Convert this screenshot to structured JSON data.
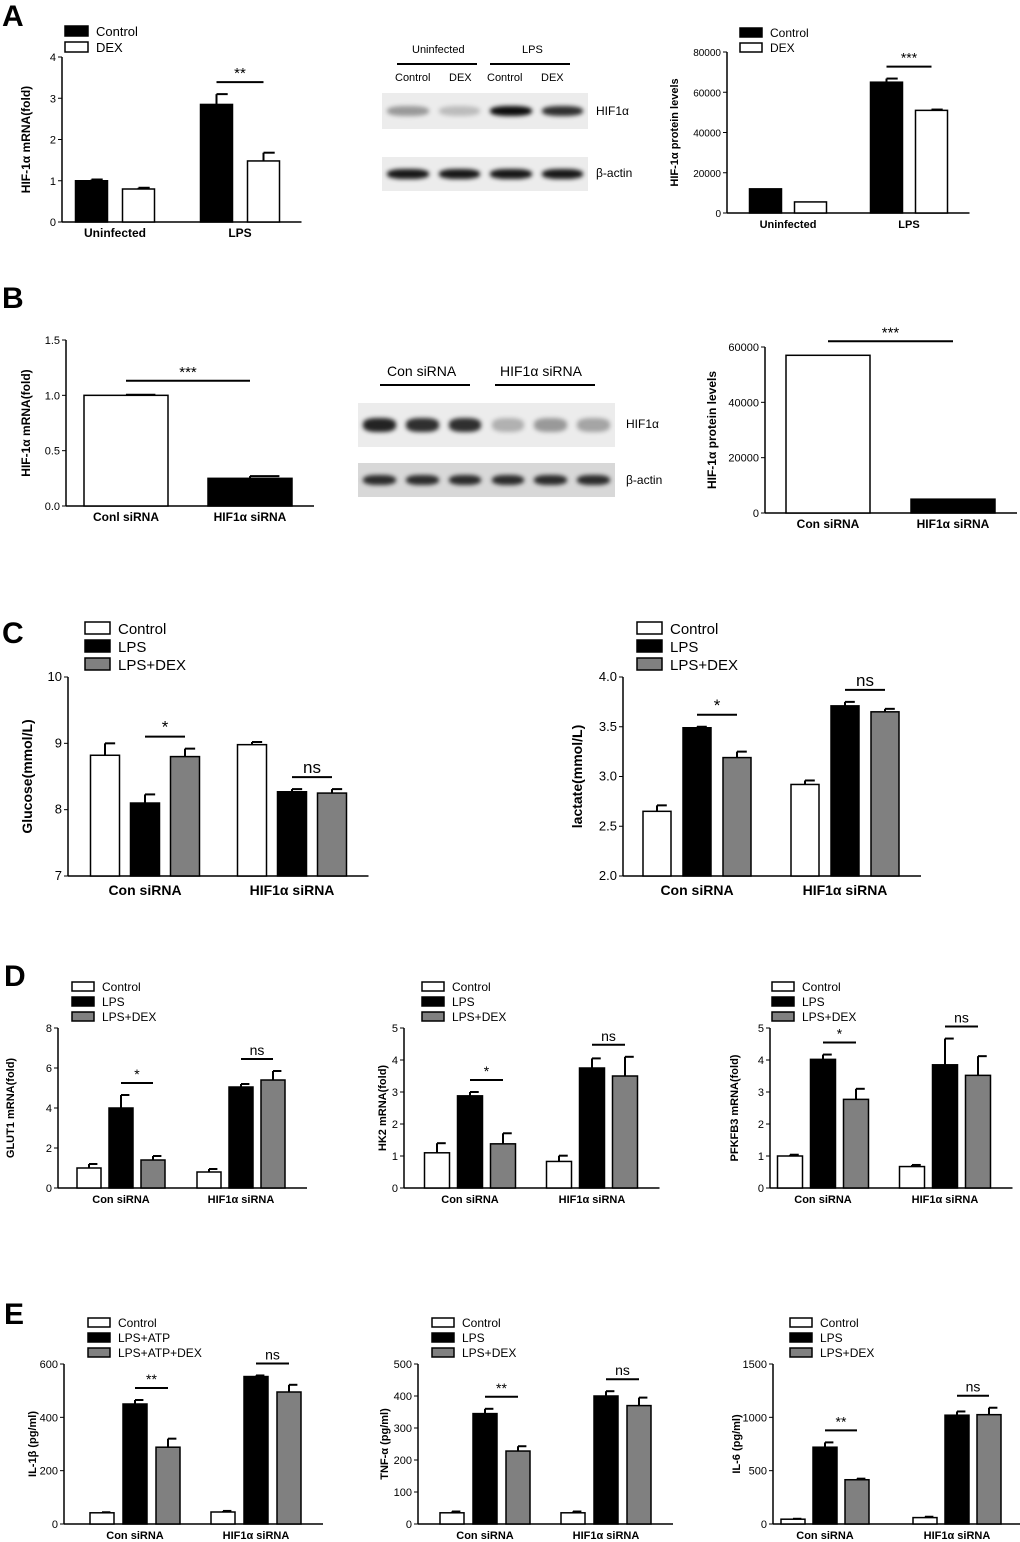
{
  "panels": [
    "A",
    "B",
    "C",
    "D",
    "E"
  ],
  "blots": [
    {
      "id": "A-blot",
      "groups": [
        "Uninfected",
        "LPS"
      ],
      "lanes": [
        "Control",
        "DEX",
        "Control",
        "DEX"
      ],
      "bands": [
        "HIF1α",
        "β-actin"
      ],
      "hif_band_intensity": [
        0.35,
        0.2,
        0.95,
        0.8
      ],
      "actin_band_intensity": [
        0.9,
        0.9,
        0.9,
        0.9
      ]
    },
    {
      "id": "B-blot",
      "groups": [
        "Con siRNA",
        "HIF1α siRNA"
      ],
      "lanes": [],
      "bands": [
        "HIF1α",
        "β-actin"
      ],
      "hif_band_intensity": [
        0.85,
        0.8,
        0.8,
        0.25,
        0.35,
        0.3
      ],
      "actin_band_intensity": [
        0.8,
        0.8,
        0.8,
        0.8,
        0.8,
        0.8
      ]
    }
  ],
  "chart_data": [
    {
      "id": "A-mrna",
      "type": "bar",
      "ylabel": "HIF-1α mRNA(fold)",
      "ylim": [
        0,
        4
      ],
      "yticks": [
        "0",
        "1",
        "2",
        "3",
        "4"
      ],
      "categories": [
        "Uninfected",
        "LPS"
      ],
      "series": [
        {
          "name": "Control",
          "fill": "#000000",
          "values": [
            1.0,
            2.85
          ],
          "errors": [
            0.03,
            0.25
          ]
        },
        {
          "name": "DEX",
          "fill": "#ffffff",
          "values": [
            0.8,
            1.48
          ],
          "errors": [
            0.03,
            0.2
          ]
        }
      ],
      "significance": [
        {
          "category": 1,
          "series": [
            0,
            1
          ],
          "label": "**"
        }
      ]
    },
    {
      "id": "A-protein",
      "type": "bar",
      "ylabel": "HIF-1α protein levels",
      "ylim": [
        0,
        80000
      ],
      "yticks": [
        "0",
        "20000",
        "40000",
        "60000",
        "80000"
      ],
      "categories": [
        "Uninfected",
        "LPS"
      ],
      "series": [
        {
          "name": "Control",
          "fill": "#000000",
          "values": [
            12000,
            65000
          ],
          "errors": [
            0,
            1800
          ]
        },
        {
          "name": "DEX",
          "fill": "#ffffff",
          "values": [
            5500,
            51000
          ],
          "errors": [
            0,
            400
          ]
        }
      ],
      "significance": [
        {
          "category": 1,
          "series": [
            0,
            1
          ],
          "label": "***"
        }
      ]
    },
    {
      "id": "B-mrna",
      "type": "bar",
      "ylabel": "HIF-1α mRNA(fold)",
      "ylim": [
        0,
        1.5
      ],
      "yticks": [
        "0.0",
        "0.5",
        "1.0",
        "1.5"
      ],
      "categories": [
        "Conl siRNA",
        "HIF1α siRNA"
      ],
      "series": [
        {
          "name": "",
          "fills": [
            "#ffffff",
            "#000000"
          ],
          "values": [
            1.0,
            0.25
          ],
          "errors": [
            0.005,
            0.02
          ]
        }
      ],
      "significance": [
        {
          "across_categories": true,
          "label": "***"
        }
      ]
    },
    {
      "id": "B-protein",
      "type": "bar",
      "ylabel": "HIF-1α protein levels",
      "ylim": [
        0,
        60000
      ],
      "yticks": [
        "0",
        "20000",
        "40000",
        "60000"
      ],
      "categories": [
        "Con siRNA",
        "HIF1α siRNA"
      ],
      "series": [
        {
          "name": "",
          "fills": [
            "#ffffff",
            "#000000"
          ],
          "values": [
            57000,
            5000
          ],
          "errors": [
            0,
            0
          ]
        }
      ],
      "significance": [
        {
          "across_categories": true,
          "label": "***"
        }
      ]
    },
    {
      "id": "C-glucose",
      "type": "bar",
      "ylabel": "Glucose(mmol/L)",
      "ylim": [
        7,
        10
      ],
      "yticks": [
        "7",
        "8",
        "9",
        "10"
      ],
      "categories": [
        "Con siRNA",
        "HIF1α siRNA"
      ],
      "series": [
        {
          "name": "Control",
          "fill": "#ffffff",
          "values": [
            8.82,
            8.98
          ],
          "errors": [
            0.18,
            0.04
          ]
        },
        {
          "name": "LPS",
          "fill": "#000000",
          "values": [
            8.1,
            8.27
          ],
          "errors": [
            0.13,
            0.04
          ]
        },
        {
          "name": "LPS+DEX",
          "fill": "#808080",
          "values": [
            8.8,
            8.25
          ],
          "errors": [
            0.12,
            0.06
          ]
        }
      ],
      "significance": [
        {
          "category": 0,
          "series": [
            1,
            2
          ],
          "label": "*"
        },
        {
          "category": 1,
          "series": [
            1,
            2
          ],
          "label": "ns"
        }
      ]
    },
    {
      "id": "C-lactate",
      "type": "bar",
      "ylabel": "lactate(mmol/L)",
      "ylim": [
        2.0,
        4.0
      ],
      "yticks": [
        "2.0",
        "2.5",
        "3.0",
        "3.5",
        "4.0"
      ],
      "categories": [
        "Con siRNA",
        "HIF1α siRNA"
      ],
      "series": [
        {
          "name": "Control",
          "fill": "#ffffff",
          "values": [
            2.65,
            2.92
          ],
          "errors": [
            0.06,
            0.04
          ]
        },
        {
          "name": "LPS",
          "fill": "#000000",
          "values": [
            3.49,
            3.71
          ],
          "errors": [
            0.01,
            0.04
          ]
        },
        {
          "name": "LPS+DEX",
          "fill": "#808080",
          "values": [
            3.19,
            3.65
          ],
          "errors": [
            0.06,
            0.03
          ]
        }
      ],
      "significance": [
        {
          "category": 0,
          "series": [
            1,
            2
          ],
          "label": "*"
        },
        {
          "category": 1,
          "series": [
            1,
            2
          ],
          "label": "ns"
        }
      ]
    },
    {
      "id": "D-glut1",
      "type": "bar",
      "ylabel": "GLUT1 mRNA(fold)",
      "ylim": [
        0,
        8
      ],
      "yticks": [
        "0",
        "2",
        "4",
        "6",
        "8"
      ],
      "categories": [
        "Con siRNA",
        "HIF1α siRNA"
      ],
      "series": [
        {
          "name": "Control",
          "fill": "#ffffff",
          "values": [
            1.0,
            0.8
          ],
          "errors": [
            0.2,
            0.15
          ]
        },
        {
          "name": "LPS",
          "fill": "#000000",
          "values": [
            4.0,
            5.05
          ],
          "errors": [
            0.65,
            0.15
          ]
        },
        {
          "name": "LPS+DEX",
          "fill": "#808080",
          "values": [
            1.4,
            5.4
          ],
          "errors": [
            0.2,
            0.45
          ]
        }
      ],
      "significance": [
        {
          "category": 0,
          "series": [
            1,
            2
          ],
          "label": "*"
        },
        {
          "category": 1,
          "series": [
            1,
            2
          ],
          "label": "ns"
        }
      ]
    },
    {
      "id": "D-hk2",
      "type": "bar",
      "ylabel": "HK2 mRNA(fold)",
      "ylim": [
        0,
        5
      ],
      "yticks": [
        "0",
        "1",
        "2",
        "3",
        "4",
        "5"
      ],
      "categories": [
        "Con siRNA",
        "HIF1α siRNA"
      ],
      "series": [
        {
          "name": "Control",
          "fill": "#ffffff",
          "values": [
            1.1,
            0.83
          ],
          "errors": [
            0.3,
            0.18
          ]
        },
        {
          "name": "LPS",
          "fill": "#000000",
          "values": [
            2.88,
            3.75
          ],
          "errors": [
            0.12,
            0.3
          ]
        },
        {
          "name": "LPS+DEX",
          "fill": "#808080",
          "values": [
            1.38,
            3.5
          ],
          "errors": [
            0.33,
            0.6
          ]
        }
      ],
      "significance": [
        {
          "category": 0,
          "series": [
            1,
            2
          ],
          "label": "*"
        },
        {
          "category": 1,
          "series": [
            1,
            2
          ],
          "label": "ns"
        }
      ]
    },
    {
      "id": "D-pfkfb3",
      "type": "bar",
      "ylabel": "PFKFB3 mRNA(fold)",
      "ylim": [
        0,
        5
      ],
      "yticks": [
        "0",
        "1",
        "2",
        "3",
        "4",
        "5"
      ],
      "categories": [
        "Con siRNA",
        "HIF1α siRNA"
      ],
      "series": [
        {
          "name": "Control",
          "fill": "#ffffff",
          "values": [
            1.0,
            0.67
          ],
          "errors": [
            0.04,
            0.05
          ]
        },
        {
          "name": "LPS",
          "fill": "#000000",
          "values": [
            4.02,
            3.85
          ],
          "errors": [
            0.15,
            0.82
          ]
        },
        {
          "name": "LPS+DEX",
          "fill": "#808080",
          "values": [
            2.77,
            3.52
          ],
          "errors": [
            0.33,
            0.6
          ]
        }
      ],
      "significance": [
        {
          "category": 0,
          "series": [
            1,
            2
          ],
          "label": "*"
        },
        {
          "category": 1,
          "series": [
            1,
            2
          ],
          "label": "ns"
        }
      ]
    },
    {
      "id": "E-il1b",
      "type": "bar",
      "ylabel": "IL-1β (pg/ml)",
      "ylim": [
        0,
        600
      ],
      "yticks": [
        "0",
        "200",
        "400",
        "600"
      ],
      "categories": [
        "Con siRNA",
        "HIF1α siRNA"
      ],
      "series": [
        {
          "name": "Control",
          "fill": "#ffffff",
          "values": [
            42,
            45
          ],
          "errors": [
            2,
            4
          ]
        },
        {
          "name": "LPS+ATP",
          "fill": "#000000",
          "values": [
            450,
            553
          ],
          "errors": [
            15,
            4
          ]
        },
        {
          "name": "LPS+ATP+DEX",
          "fill": "#808080",
          "values": [
            288,
            495
          ],
          "errors": [
            32,
            27
          ]
        }
      ],
      "significance": [
        {
          "category": 0,
          "series": [
            1,
            2
          ],
          "label": "**"
        },
        {
          "category": 1,
          "series": [
            1,
            2
          ],
          "label": "ns"
        }
      ]
    },
    {
      "id": "E-tnfa",
      "type": "bar",
      "ylabel": "TNF-α (pg/ml)",
      "ylim": [
        0,
        500
      ],
      "yticks": [
        "0",
        "100",
        "200",
        "300",
        "400",
        "500"
      ],
      "categories": [
        "Con siRNA",
        "HIF1α siRNA"
      ],
      "series": [
        {
          "name": "Control",
          "fill": "#ffffff",
          "values": [
            35,
            35
          ],
          "errors": [
            4,
            4
          ]
        },
        {
          "name": "LPS",
          "fill": "#000000",
          "values": [
            345,
            400
          ],
          "errors": [
            15,
            15
          ]
        },
        {
          "name": "LPS+DEX",
          "fill": "#808080",
          "values": [
            228,
            370
          ],
          "errors": [
            15,
            25
          ]
        }
      ],
      "significance": [
        {
          "category": 0,
          "series": [
            1,
            2
          ],
          "label": "**"
        },
        {
          "category": 1,
          "series": [
            1,
            2
          ],
          "label": "ns"
        }
      ]
    },
    {
      "id": "E-il6",
      "type": "bar",
      "ylabel": "IL-6 (pg/ml)",
      "ylim": [
        0,
        1500
      ],
      "yticks": [
        "0",
        "500",
        "1000",
        "1500"
      ],
      "categories": [
        "Con siRNA",
        "HIF1α siRNA"
      ],
      "series": [
        {
          "name": "Control",
          "fill": "#ffffff",
          "values": [
            45,
            60
          ],
          "errors": [
            4,
            8
          ]
        },
        {
          "name": "LPS",
          "fill": "#000000",
          "values": [
            720,
            1020
          ],
          "errors": [
            45,
            35
          ]
        },
        {
          "name": "LPS+DEX",
          "fill": "#808080",
          "values": [
            415,
            1025
          ],
          "errors": [
            10,
            65
          ]
        }
      ],
      "significance": [
        {
          "category": 0,
          "series": [
            1,
            2
          ],
          "label": "**"
        },
        {
          "category": 1,
          "series": [
            1,
            2
          ],
          "label": "ns"
        }
      ]
    }
  ]
}
